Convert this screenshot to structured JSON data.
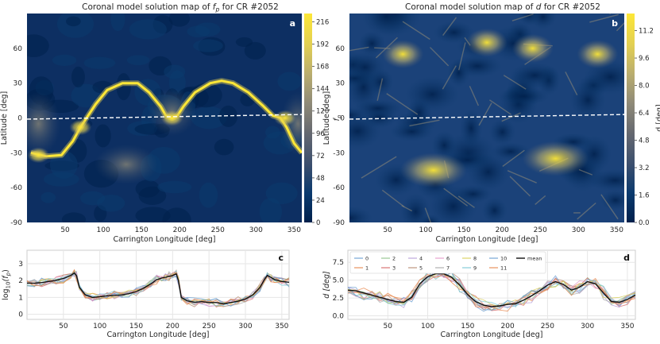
{
  "colors": {
    "cmap": [
      "#00204c",
      "#0b3a6e",
      "#3c4f6e",
      "#666970",
      "#8f8a78",
      "#b9ad6f",
      "#e2cf53",
      "#fde737"
    ],
    "dashed_line": "#ffffff",
    "grid": "#e6e6e6",
    "mean_line": "#111111",
    "series": [
      "#6a9fd0",
      "#e8894f",
      "#8fc48a",
      "#d46a6a",
      "#b7a0d9",
      "#b98c73",
      "#e59cc9",
      "#a9a9a9",
      "#d8cf5a",
      "#79c8d6",
      "#6a9fd0",
      "#e8894f"
    ]
  },
  "chart_data": [
    {
      "panel": "a",
      "type": "heatmap",
      "title": "Coronal model solution map of f_p for CR #2052",
      "title_parts": [
        "Coronal model solution map of ",
        "f",
        "p",
        " for CR #2052"
      ],
      "xlabel": "Carrington Longitude [deg]",
      "ylabel": "Latitude [deg]",
      "xlim": [
        0,
        360
      ],
      "ylim": [
        -90,
        90
      ],
      "xticks": [
        50,
        100,
        150,
        200,
        250,
        300,
        350
      ],
      "yticks": [
        -90,
        -60,
        -30,
        0,
        30,
        60
      ],
      "colorbar": {
        "label_parts": [
          "f",
          "p"
        ],
        "ticks": [
          0,
          24,
          48,
          72,
          96,
          120,
          144,
          168,
          192,
          216
        ],
        "range": [
          0,
          225
        ]
      },
      "grid": false,
      "neutral_line": {
        "style": "dashed",
        "lat_start": -1,
        "lat_end": 3
      },
      "bright_arc": {
        "lon": [
          5,
          25,
          45,
          60,
          70,
          78,
          90,
          105,
          125,
          145,
          160,
          175,
          182,
          190,
          197,
          205,
          220,
          240,
          255,
          270,
          290,
          310,
          322,
          332,
          340,
          350,
          360
        ],
        "lat": [
          -30,
          -33,
          -32,
          -20,
          -8,
          0,
          12,
          24,
          30,
          30,
          22,
          10,
          2,
          0,
          2,
          10,
          22,
          30,
          32,
          30,
          22,
          10,
          2,
          0,
          -8,
          -22,
          -30
        ]
      }
    },
    {
      "panel": "b",
      "type": "heatmap",
      "title": "Coronal model solution map of d for CR #2052",
      "title_parts": [
        "Coronal model solution map of ",
        "d",
        " for CR #2052"
      ],
      "xlabel": "Carrington Longitude [deg]",
      "ylabel": "Latitude [deg]",
      "xlim": [
        0,
        360
      ],
      "ylim": [
        -90,
        90
      ],
      "xticks": [
        50,
        100,
        150,
        200,
        250,
        300,
        350
      ],
      "yticks": [
        -90,
        -60,
        -30,
        0,
        30,
        60
      ],
      "colorbar": {
        "label": "d [deg]",
        "ticks": [
          0.0,
          1.6,
          3.2,
          4.8,
          6.4,
          8.0,
          9.6,
          11.2
        ],
        "range": [
          0,
          12.2
        ]
      },
      "grid": false,
      "neutral_line": {
        "style": "dashed",
        "lat_start": -1,
        "lat_end": 3
      },
      "bright_regions": [
        {
          "lon": 110,
          "lat": -45
        },
        {
          "lon": 270,
          "lat": -35
        },
        {
          "lon": 325,
          "lat": 55
        },
        {
          "lon": 70,
          "lat": 55
        },
        {
          "lon": 180,
          "lat": 65
        },
        {
          "lon": 240,
          "lat": 60
        }
      ]
    },
    {
      "panel": "c",
      "type": "line",
      "title": "",
      "xlabel": "Carrington Longitude [deg]",
      "ylabel_parts": [
        "log",
        "10",
        "(f",
        "p",
        ")"
      ],
      "xlim": [
        0,
        360
      ],
      "ylim": [
        -0.3,
        3.8
      ],
      "xticks": [
        50,
        100,
        150,
        200,
        250,
        300,
        350
      ],
      "yticks": [
        0,
        1,
        2,
        3
      ],
      "grid": true,
      "x": [
        0,
        10,
        20,
        30,
        40,
        50,
        60,
        65,
        68,
        72,
        80,
        90,
        100,
        110,
        120,
        130,
        140,
        150,
        160,
        170,
        178,
        185,
        190,
        195,
        200,
        205,
        208,
        212,
        220,
        230,
        240,
        250,
        260,
        270,
        280,
        290,
        300,
        310,
        320,
        326,
        330,
        335,
        340,
        350,
        360
      ],
      "mean": [
        1.85,
        1.85,
        1.88,
        1.95,
        2.02,
        2.12,
        2.3,
        2.45,
        2.3,
        1.6,
        1.15,
        1.0,
        1.05,
        1.1,
        1.12,
        1.15,
        1.22,
        1.35,
        1.55,
        1.8,
        2.05,
        2.15,
        2.2,
        2.25,
        2.3,
        2.4,
        2.0,
        1.0,
        0.8,
        0.72,
        0.75,
        0.7,
        0.7,
        0.62,
        0.7,
        0.78,
        0.9,
        1.15,
        1.6,
        2.05,
        2.3,
        2.2,
        2.05,
        1.95,
        1.9
      ],
      "series_names": [
        "0",
        "1",
        "2",
        "3",
        "4",
        "5",
        "6",
        "7",
        "8",
        "9",
        "10",
        "11"
      ]
    },
    {
      "panel": "d",
      "type": "line",
      "title": "",
      "xlabel": "Carrington Longitude [deg]",
      "ylabel": "d [deg]",
      "xlim": [
        0,
        360
      ],
      "ylim": [
        -0.5,
        9.2
      ],
      "xticks": [
        50,
        100,
        150,
        200,
        250,
        300,
        350
      ],
      "yticks": [
        0.0,
        2.5,
        5.0,
        7.5
      ],
      "grid": true,
      "x": [
        0,
        10,
        20,
        30,
        40,
        50,
        60,
        70,
        80,
        90,
        100,
        110,
        120,
        130,
        140,
        150,
        160,
        170,
        180,
        190,
        200,
        210,
        220,
        230,
        240,
        250,
        260,
        270,
        280,
        290,
        300,
        310,
        320,
        330,
        340,
        350,
        360
      ],
      "mean": [
        3.6,
        3.5,
        3.2,
        2.9,
        2.6,
        2.3,
        2.0,
        1.9,
        2.6,
        4.5,
        5.5,
        5.9,
        5.9,
        5.4,
        4.3,
        3.0,
        2.0,
        1.5,
        1.3,
        1.4,
        1.6,
        1.7,
        2.2,
        2.8,
        3.5,
        4.3,
        4.8,
        4.4,
        3.6,
        4.0,
        4.8,
        4.5,
        3.2,
        2.0,
        1.9,
        2.3,
        2.9
      ],
      "legend": {
        "entries": [
          "0",
          "1",
          "2",
          "3",
          "4",
          "5",
          "6",
          "7",
          "8",
          "9",
          "10",
          "11",
          "mean"
        ],
        "placement": "top-left"
      }
    }
  ]
}
